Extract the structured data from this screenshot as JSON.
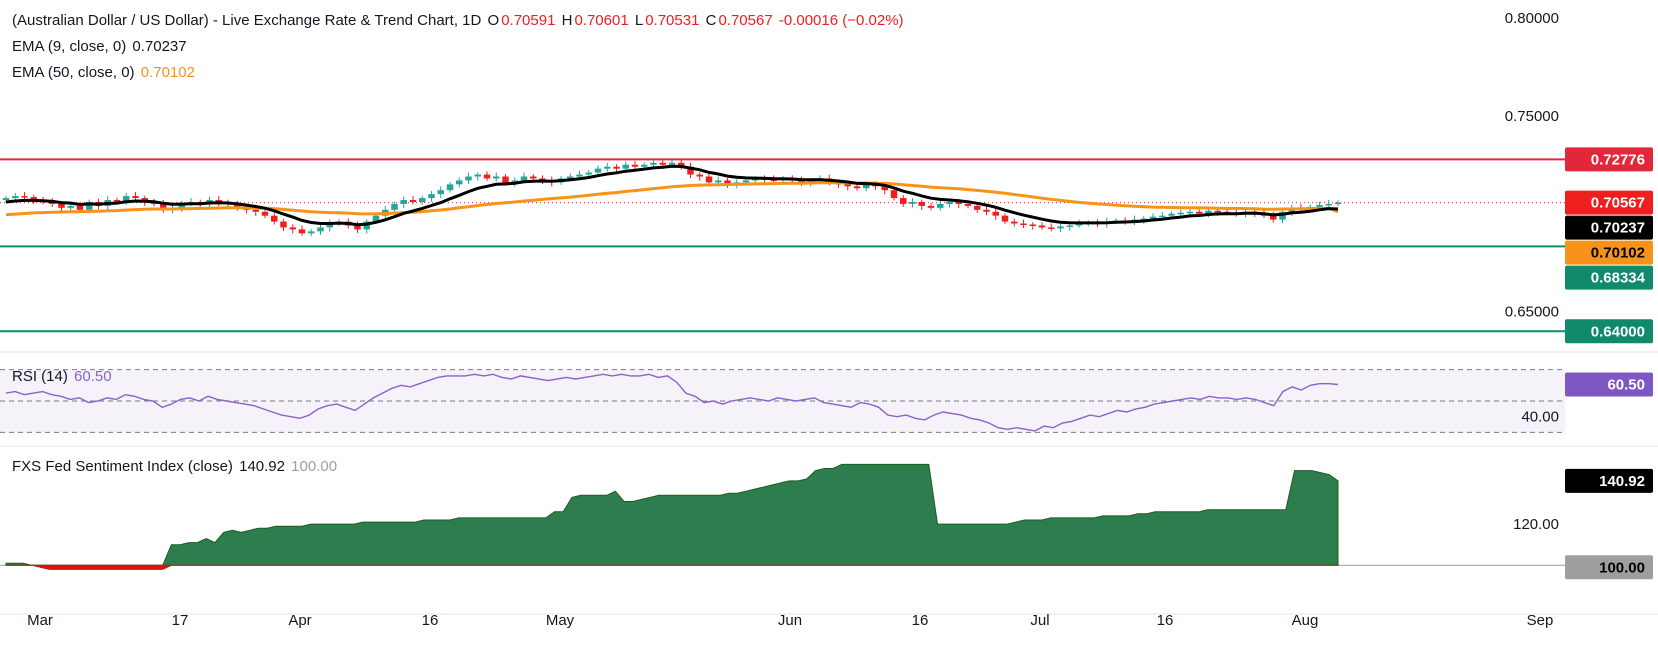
{
  "legend": {
    "title": "(Australian Dollar / US Dollar) - Live Exchange Rate & Trend Chart, 1D",
    "o_label": "O",
    "o_val": "0.70591",
    "h_label": "H",
    "h_val": "0.70601",
    "l_label": "L",
    "l_val": "0.70531",
    "c_label": "C",
    "c_val": "0.70567",
    "change": "-0.00016 (−0.02%)",
    "ema9_label": "EMA (9, close, 0)",
    "ema9_val": "0.70237",
    "ema50_label": "EMA (50, close, 0)",
    "ema50_val": "0.70102",
    "rsi_label": "RSI (14)",
    "rsi_val": "60.50",
    "fxs_label": "FXS Fed Sentiment Index (close)",
    "fxs_val": "140.92",
    "fxs_base": "100.00"
  },
  "colors": {
    "up": "#26a69a",
    "down": "#ef1f1f",
    "ema9": "#000000",
    "ema50": "#f7931a",
    "resistance": "#e0283a",
    "support": "#0f8a6b",
    "rsi": "#8a63c9",
    "fxs_fill": "#2e7d4f",
    "fxs_neg": "#e01010"
  },
  "chart_data": [
    {
      "type": "candlestick",
      "title": "(Australian Dollar / US Dollar) - Live Exchange Rate & Trend Chart, 1D",
      "x_labels": [
        "Mar",
        "17",
        "Apr",
        "16",
        "May",
        "Jun",
        "16",
        "Jul",
        "16",
        "Aug",
        "Sep"
      ],
      "y_ticks": [
        "0.80000",
        "0.75000",
        "0.65000"
      ],
      "ylim": [
        0.633,
        0.805
      ],
      "last_close": 0.70567,
      "levels": [
        {
          "label": "0.72776",
          "value": 0.72776,
          "kind": "resistance"
        },
        {
          "label": "0.68334",
          "value": 0.68334,
          "kind": "support"
        },
        {
          "label": "0.64000",
          "value": 0.64,
          "kind": "support"
        }
      ],
      "price_labels": [
        {
          "label": "0.70567",
          "kind": "close"
        },
        {
          "label": "0.70237",
          "kind": "ema9"
        },
        {
          "label": "0.70102",
          "kind": "ema50"
        }
      ],
      "closes": [
        0.708,
        0.709,
        0.7085,
        0.707,
        0.706,
        0.705,
        0.703,
        0.704,
        0.702,
        0.706,
        0.704,
        0.707,
        0.706,
        0.709,
        0.708,
        0.706,
        0.705,
        0.702,
        0.703,
        0.705,
        0.706,
        0.705,
        0.707,
        0.706,
        0.705,
        0.703,
        0.702,
        0.701,
        0.699,
        0.696,
        0.693,
        0.692,
        0.69,
        0.691,
        0.693,
        0.695,
        0.696,
        0.694,
        0.692,
        0.696,
        0.699,
        0.702,
        0.705,
        0.707,
        0.706,
        0.708,
        0.71,
        0.712,
        0.715,
        0.717,
        0.719,
        0.72,
        0.718,
        0.719,
        0.716,
        0.717,
        0.719,
        0.718,
        0.717,
        0.716,
        0.718,
        0.719,
        0.72,
        0.721,
        0.723,
        0.724,
        0.723,
        0.725,
        0.724,
        0.725,
        0.726,
        0.725,
        0.726,
        0.724,
        0.72,
        0.719,
        0.716,
        0.717,
        0.715,
        0.716,
        0.717,
        0.718,
        0.7175,
        0.717,
        0.718,
        0.717,
        0.716,
        0.717,
        0.718,
        0.716,
        0.715,
        0.714,
        0.713,
        0.715,
        0.714,
        0.712,
        0.708,
        0.705,
        0.706,
        0.704,
        0.703,
        0.705,
        0.706,
        0.705,
        0.704,
        0.702,
        0.701,
        0.699,
        0.696,
        0.695,
        0.6945,
        0.694,
        0.693,
        0.6925,
        0.6935,
        0.694,
        0.695,
        0.6955,
        0.695,
        0.696,
        0.6965,
        0.696,
        0.697,
        0.6975,
        0.6985,
        0.699,
        0.7,
        0.7005,
        0.701,
        0.7,
        0.7015,
        0.701,
        0.7005,
        0.7,
        0.701,
        0.7005,
        0.699,
        0.697,
        0.701,
        0.703,
        0.7025,
        0.7035,
        0.7045,
        0.705,
        0.7057
      ],
      "ema9": [
        0.706,
        0.7065,
        0.7068,
        0.7068,
        0.7066,
        0.7063,
        0.7057,
        0.7054,
        0.7047,
        0.705,
        0.7048,
        0.7052,
        0.7054,
        0.7061,
        0.7065,
        0.7064,
        0.7061,
        0.7053,
        0.7048,
        0.7049,
        0.7051,
        0.7051,
        0.7055,
        0.7056,
        0.7055,
        0.705,
        0.7044,
        0.7037,
        0.7028,
        0.7015,
        0.6998,
        0.6983,
        0.6966,
        0.6955,
        0.695,
        0.695,
        0.6952,
        0.695,
        0.6944,
        0.6947,
        0.6956,
        0.6969,
        0.6985,
        0.7002,
        0.7014,
        0.7027,
        0.7042,
        0.7057,
        0.7076,
        0.7094,
        0.7113,
        0.713,
        0.714,
        0.715,
        0.7152,
        0.7156,
        0.7163,
        0.7166,
        0.7167,
        0.7166,
        0.7169,
        0.7173,
        0.7179,
        0.7185,
        0.7194,
        0.7203,
        0.7209,
        0.7217,
        0.7222,
        0.7228,
        0.7234,
        0.7237,
        0.7242,
        0.7241,
        0.7233,
        0.7224,
        0.7211,
        0.7203,
        0.7192,
        0.7186,
        0.7183,
        0.7182,
        0.7181,
        0.7179,
        0.7179,
        0.7177,
        0.7174,
        0.7173,
        0.7174,
        0.7171,
        0.7167,
        0.7162,
        0.7155,
        0.7154,
        0.7151,
        0.7145,
        0.7132,
        0.7115,
        0.7104,
        0.7091,
        0.7079,
        0.7073,
        0.707,
        0.7066,
        0.7061,
        0.7053,
        0.7044,
        0.7033,
        0.7018,
        0.7005,
        0.6993,
        0.6983,
        0.6972,
        0.6963,
        0.6957,
        0.6954,
        0.6953,
        0.6953,
        0.6953,
        0.6954,
        0.6957,
        0.6958,
        0.696,
        0.6963,
        0.6968,
        0.6972,
        0.6978,
        0.6983,
        0.6989,
        0.6991,
        0.6996,
        0.6999,
        0.7,
        0.7,
        0.7002,
        0.7003,
        0.7,
        0.6994,
        0.6997,
        0.7004,
        0.7008,
        0.7013,
        0.702,
        0.7026,
        0.7024
      ],
      "ema50": [
        0.6995,
        0.6998,
        0.7001,
        0.7004,
        0.7006,
        0.7008,
        0.7009,
        0.701,
        0.701,
        0.7012,
        0.7013,
        0.7015,
        0.7016,
        0.7019,
        0.7021,
        0.7023,
        0.7024,
        0.7024,
        0.7024,
        0.7025,
        0.7026,
        0.7027,
        0.7028,
        0.7029,
        0.703,
        0.703,
        0.703,
        0.7029,
        0.7028,
        0.7026,
        0.7022,
        0.7018,
        0.7014,
        0.701,
        0.7008,
        0.7006,
        0.7005,
        0.7003,
        0.7,
        0.6999,
        0.7,
        0.7001,
        0.7003,
        0.7006,
        0.7008,
        0.7011,
        0.7015,
        0.7019,
        0.7024,
        0.703,
        0.7036,
        0.7042,
        0.7047,
        0.7052,
        0.7056,
        0.706,
        0.7065,
        0.7069,
        0.7073,
        0.7077,
        0.7081,
        0.7085,
        0.7089,
        0.7094,
        0.7099,
        0.7104,
        0.7108,
        0.7114,
        0.7118,
        0.7123,
        0.7128,
        0.7133,
        0.7138,
        0.7141,
        0.7144,
        0.7146,
        0.7147,
        0.7148,
        0.7149,
        0.715,
        0.7151,
        0.7152,
        0.7153,
        0.7154,
        0.7155,
        0.7156,
        0.7156,
        0.7157,
        0.7158,
        0.7158,
        0.7158,
        0.7157,
        0.7157,
        0.7157,
        0.7156,
        0.7155,
        0.7152,
        0.7148,
        0.7144,
        0.714,
        0.7136,
        0.7133,
        0.713,
        0.7127,
        0.7123,
        0.7119,
        0.7115,
        0.711,
        0.7104,
        0.7098,
        0.7092,
        0.7086,
        0.7079,
        0.7073,
        0.7068,
        0.7063,
        0.7058,
        0.7054,
        0.705,
        0.7047,
        0.7044,
        0.7041,
        0.7038,
        0.7036,
        0.7034,
        0.7033,
        0.7032,
        0.7031,
        0.703,
        0.703,
        0.7029,
        0.7028,
        0.7027,
        0.7027,
        0.7026,
        0.7025,
        0.7023,
        0.7023,
        0.7024,
        0.7024,
        0.7025,
        0.7026,
        0.7027,
        0.7028,
        0.701
      ]
    },
    {
      "type": "line",
      "title": "RSI (14)",
      "ylim": [
        22,
        78
      ],
      "y_ticks": [
        "40.00"
      ],
      "bands": [
        70,
        50,
        30
      ],
      "last_label": "60.50",
      "values": [
        55,
        56,
        54,
        55,
        56,
        54,
        53,
        51,
        52,
        49,
        50,
        52,
        51,
        54,
        53,
        51,
        50,
        46,
        48,
        51,
        52,
        50,
        53,
        51,
        50,
        49,
        48,
        47,
        45,
        43,
        41,
        40,
        39,
        41,
        45,
        47,
        48,
        46,
        44,
        48,
        52,
        55,
        58,
        60,
        59,
        61,
        63,
        65,
        66,
        66,
        66,
        67,
        66,
        67,
        65,
        64,
        66,
        65,
        64,
        63,
        64,
        65,
        64,
        65,
        66,
        67,
        66,
        67,
        66,
        66,
        67,
        65,
        66,
        62,
        55,
        53,
        49,
        50,
        48,
        50,
        51,
        52,
        51,
        50,
        52,
        51,
        50,
        51,
        52,
        49,
        48,
        47,
        46,
        49,
        48,
        46,
        41,
        40,
        41,
        39,
        38,
        41,
        43,
        42,
        41,
        39,
        38,
        36,
        33,
        32,
        33,
        32,
        31,
        34,
        33,
        36,
        37,
        39,
        41,
        40,
        42,
        44,
        43,
        45,
        46,
        48,
        49,
        50,
        51,
        52,
        51,
        53,
        52,
        52,
        51,
        52,
        51,
        49,
        47,
        56,
        59,
        57,
        60,
        61,
        61,
        60.5
      ]
    },
    {
      "type": "area",
      "title": "FXS Fed Sentiment Index (close)",
      "ylim": [
        88,
        156
      ],
      "y_ticks": [
        "120.00"
      ],
      "baseline": 100,
      "baseline_label": "100.00",
      "last_label": "140.92",
      "values": [
        101,
        101,
        101,
        100,
        99,
        98,
        98,
        98,
        98,
        98,
        98,
        98,
        98,
        98,
        98,
        98,
        98,
        98,
        98,
        110,
        110,
        111,
        111,
        113,
        111,
        116,
        117,
        116,
        117,
        118,
        118,
        119,
        119,
        119,
        119,
        120,
        120,
        120,
        120,
        120,
        120,
        121,
        121,
        121,
        121,
        121,
        121,
        121,
        122,
        122,
        122,
        122,
        123,
        123,
        123,
        123,
        123,
        123,
        123,
        123,
        123,
        123,
        123,
        126,
        126,
        133,
        134,
        134,
        134,
        134,
        136,
        131,
        131,
        132,
        133,
        134,
        134,
        134,
        134,
        134,
        134,
        134,
        134,
        135,
        135,
        136,
        137,
        138,
        139,
        140,
        141,
        141,
        142,
        146,
        147,
        147,
        149,
        149,
        149,
        149,
        149,
        149,
        149,
        149,
        149,
        149,
        149,
        120,
        120,
        120,
        120,
        120,
        120,
        120,
        120,
        120,
        121,
        122,
        122,
        122,
        123,
        123,
        123,
        123,
        123,
        123,
        124,
        124,
        124,
        124,
        125,
        125,
        126,
        126,
        126,
        126,
        126,
        126,
        127,
        127,
        127,
        127,
        127,
        127,
        127,
        127,
        127,
        127,
        146,
        146,
        146,
        145,
        144,
        141
      ]
    }
  ]
}
